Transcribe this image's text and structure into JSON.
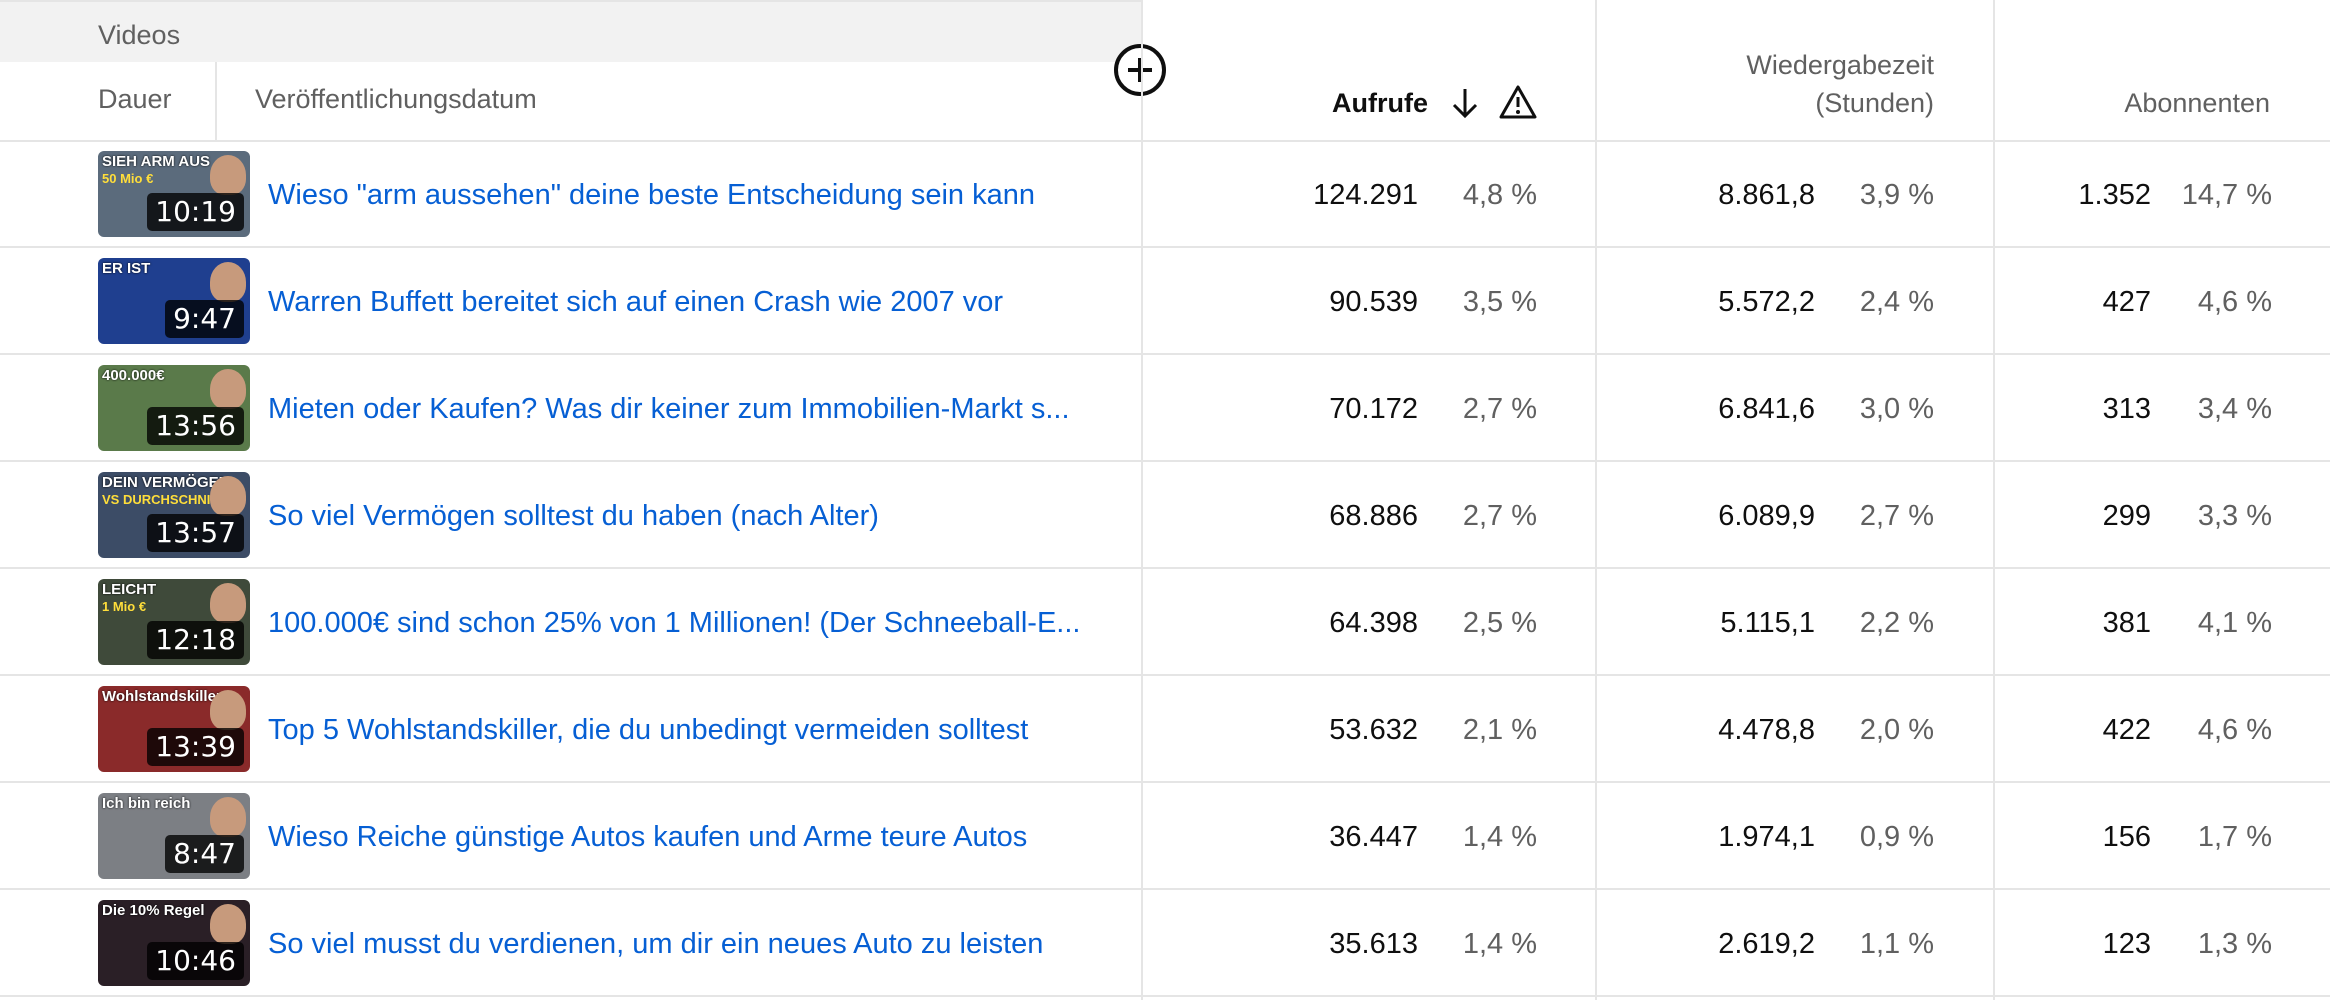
{
  "header": {
    "section_label": "Videos",
    "duration_label": "Dauer",
    "date_label": "Veröffentlichungsdatum",
    "views_label": "Aufrufe",
    "watchtime_label_line1": "Wiedergabezeit",
    "watchtime_label_line2": "(Stunden)",
    "subscribers_label": "Abonnenten",
    "sort_icon": "arrow-down-icon",
    "warning_icon": "warning-triangle-icon",
    "add_icon": "add-circle-icon"
  },
  "colors": {
    "link": "#065fd4",
    "secondary_text": "#606060",
    "primary_text": "#0f0f0f",
    "divider": "#e5e5e5",
    "header_band": "#f2f2f2"
  },
  "rows": [
    {
      "thumb_caption": "SIEH ARM AUS",
      "thumb_caption2": "50 Mio €",
      "thumb_bg": "#5b6b7c",
      "duration": "10:19",
      "title": "Wieso \"arm aussehen\" deine beste Entscheidung sein kann",
      "views": "124.291",
      "views_pct": "4,8 %",
      "watchtime": "8.861,8",
      "watchtime_pct": "3,9 %",
      "subscribers": "1.352",
      "subscribers_pct": "14,7 %"
    },
    {
      "thumb_caption": "ER IST",
      "thumb_caption2": "",
      "thumb_bg": "#1f3f8f",
      "duration": "9:47",
      "title": "Warren Buffett bereitet sich auf einen Crash wie 2007 vor",
      "views": "90.539",
      "views_pct": "3,5 %",
      "watchtime": "5.572,2",
      "watchtime_pct": "2,4 %",
      "subscribers": "427",
      "subscribers_pct": "4,6 %"
    },
    {
      "thumb_caption": "400.000€",
      "thumb_caption2": "",
      "thumb_bg": "#5a7a4a",
      "duration": "13:56",
      "title": "Mieten oder Kaufen? Was dir keiner zum Immobilien-Markt s...",
      "views": "70.172",
      "views_pct": "2,7 %",
      "watchtime": "6.841,6",
      "watchtime_pct": "3,0 %",
      "subscribers": "313",
      "subscribers_pct": "3,4 %"
    },
    {
      "thumb_caption": "DEIN VERMÖGEN",
      "thumb_caption2": "VS DURCHSCHNITT",
      "thumb_bg": "#3c4c66",
      "duration": "13:57",
      "title": "So viel Vermögen solltest du haben (nach Alter)",
      "views": "68.886",
      "views_pct": "2,7 %",
      "watchtime": "6.089,9",
      "watchtime_pct": "2,7 %",
      "subscribers": "299",
      "subscribers_pct": "3,3 %"
    },
    {
      "thumb_caption": "LEICHT",
      "thumb_caption2": "1 Mio €",
      "thumb_bg": "#3f4a3a",
      "duration": "12:18",
      "title": "100.000€ sind schon 25% von 1 Millionen! (Der Schneeball-E...",
      "views": "64.398",
      "views_pct": "2,5 %",
      "watchtime": "5.115,1",
      "watchtime_pct": "2,2 %",
      "subscribers": "381",
      "subscribers_pct": "4,1 %"
    },
    {
      "thumb_caption": "Wohlstandskiller",
      "thumb_caption2": "",
      "thumb_bg": "#8a2a2a",
      "duration": "13:39",
      "title": "Top 5 Wohlstandskiller, die du unbedingt vermeiden solltest",
      "views": "53.632",
      "views_pct": "2,1 %",
      "watchtime": "4.478,8",
      "watchtime_pct": "2,0 %",
      "subscribers": "422",
      "subscribers_pct": "4,6 %"
    },
    {
      "thumb_caption": "Ich bin reich",
      "thumb_caption2": "",
      "thumb_bg": "#7c7f84",
      "duration": "8:47",
      "title": "Wieso Reiche günstige Autos kaufen und Arme teure Autos",
      "views": "36.447",
      "views_pct": "1,4 %",
      "watchtime": "1.974,1",
      "watchtime_pct": "0,9 %",
      "subscribers": "156",
      "subscribers_pct": "1,7 %"
    },
    {
      "thumb_caption": "Die 10% Regel",
      "thumb_caption2": "",
      "thumb_bg": "#2a1f26",
      "duration": "10:46",
      "title": "So viel musst du verdienen, um dir ein neues Auto zu leisten",
      "views": "35.613",
      "views_pct": "1,4 %",
      "watchtime": "2.619,2",
      "watchtime_pct": "1,1 %",
      "subscribers": "123",
      "subscribers_pct": "1,3 %"
    }
  ]
}
